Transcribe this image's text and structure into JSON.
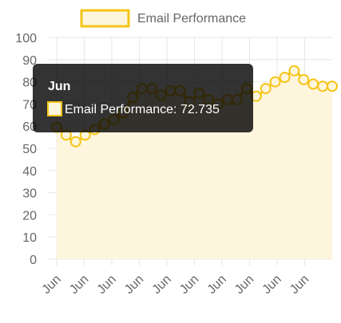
{
  "chart_data": {
    "type": "line",
    "title": "",
    "xlabel": "",
    "ylabel": "",
    "ylim": [
      0,
      100
    ],
    "yticks": [
      0,
      10,
      20,
      30,
      40,
      50,
      60,
      70,
      80,
      90,
      100
    ],
    "x": [
      "Jun",
      "Jun",
      "Jun",
      "Jun",
      "Jun",
      "Jun",
      "Jun",
      "Jun",
      "Jun",
      "Jun",
      "Jun",
      "Jun",
      "Jun",
      "Jun",
      "Jun",
      "Jun",
      "Jun",
      "Jun",
      "Jun",
      "Jun",
      "Jun",
      "Jun",
      "Jun",
      "Jun",
      "Jun",
      "Jun",
      "Jun",
      "Jun",
      "Jun",
      "Jun"
    ],
    "xtick_labels": [
      "Jun",
      "Jun",
      "Jun",
      "Jun",
      "Jun",
      "Jun",
      "Jun",
      "Jun",
      "Jun",
      "Jun"
    ],
    "series": [
      {
        "name": "Email Performance",
        "values": [
          59.5,
          56,
          53,
          56,
          58.5,
          61,
          63,
          66,
          73,
          77,
          77,
          74,
          76,
          76,
          71,
          75,
          72,
          70,
          72,
          72,
          77,
          73.5,
          77,
          80,
          82,
          85,
          81,
          79,
          78,
          78
        ],
        "line_color": "#f5c518",
        "fill_color": "#fdf5dc"
      }
    ],
    "grid": true,
    "legend": "top",
    "tooltip": {
      "title": "Jun",
      "label": "Email Performance: 72.735"
    }
  }
}
